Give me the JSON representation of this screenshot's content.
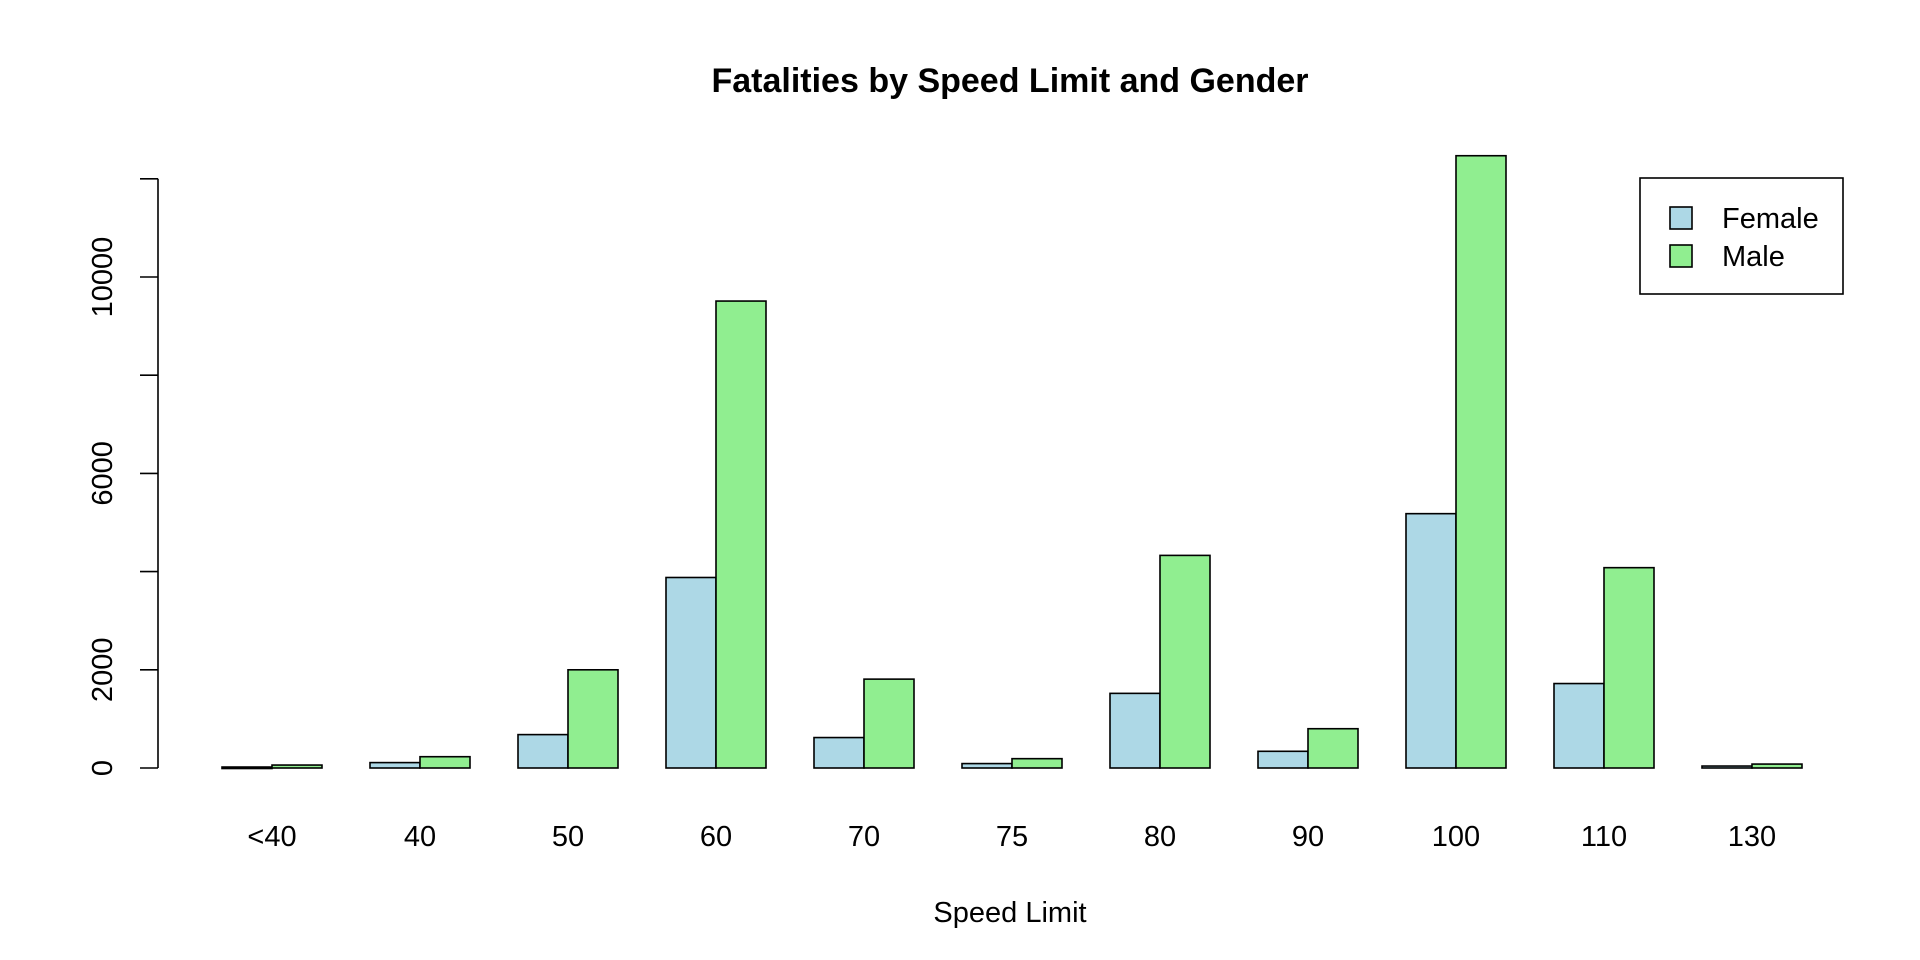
{
  "chart_data": {
    "type": "bar",
    "title": "Fatalities by Speed Limit and Gender",
    "xlabel": "Speed Limit",
    "ylabel": "",
    "categories": [
      "<40",
      "40",
      "50",
      "60",
      "70",
      "75",
      "80",
      "90",
      "100",
      "110",
      "130"
    ],
    "series": [
      {
        "name": "Female",
        "color": "#ADD8E6",
        "values": [
          20,
          110,
          680,
          3880,
          620,
          90,
          1520,
          340,
          5180,
          1720,
          40
        ]
      },
      {
        "name": "Male",
        "color": "#90EE90",
        "values": [
          60,
          230,
          2000,
          9510,
          1810,
          190,
          4330,
          800,
          12470,
          4080,
          80
        ]
      }
    ],
    "ylim": [
      0,
      12000
    ],
    "yticks": [
      0,
      2000,
      6000,
      10000
    ],
    "legend_position": "top-right",
    "grid": false
  }
}
